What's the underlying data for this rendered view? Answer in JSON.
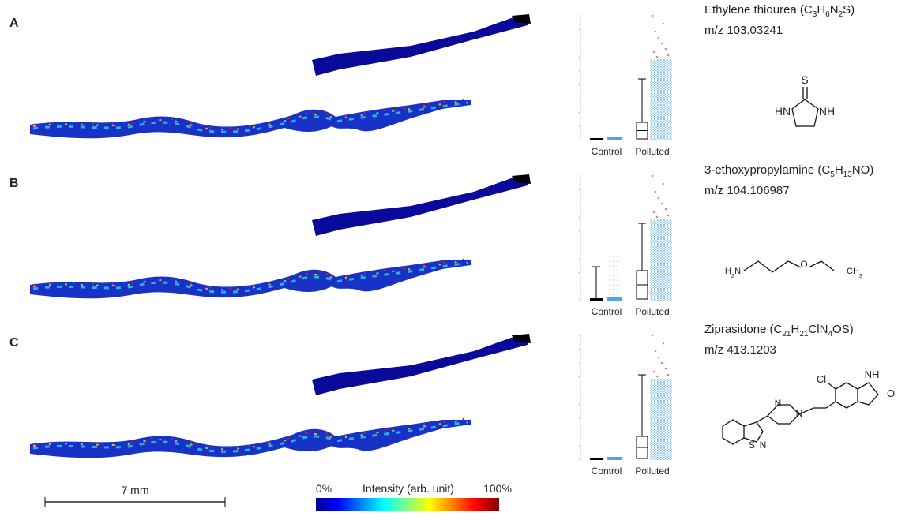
{
  "panels": [
    {
      "label": "A",
      "compound": "Ethylene thiourea (C3H6N2S)",
      "mz": "m/z 103.03241",
      "groups": [
        "Control",
        "Polluted"
      ],
      "structure_labels": [
        "S",
        "HN",
        "NH"
      ]
    },
    {
      "label": "B",
      "compound": "3-ethoxypropylamine (C5H13NO)",
      "mz": "m/z 104.106987",
      "groups": [
        "Control",
        "Polluted"
      ],
      "structure_labels": [
        "H2N",
        "O",
        "CH3"
      ]
    },
    {
      "label": "C",
      "compound": "Ziprasidone (C21H21ClN4OS)",
      "mz": "m/z 413.1203",
      "groups": [
        "Control",
        "Polluted"
      ],
      "structure_labels": [
        "Cl",
        "NH",
        "O",
        "N",
        "N",
        "S",
        "N"
      ]
    }
  ],
  "scale_bar": "7 mm",
  "colorbar": {
    "min": "0%",
    "title": "Intensity (arb. unit)",
    "max": "100%"
  }
}
